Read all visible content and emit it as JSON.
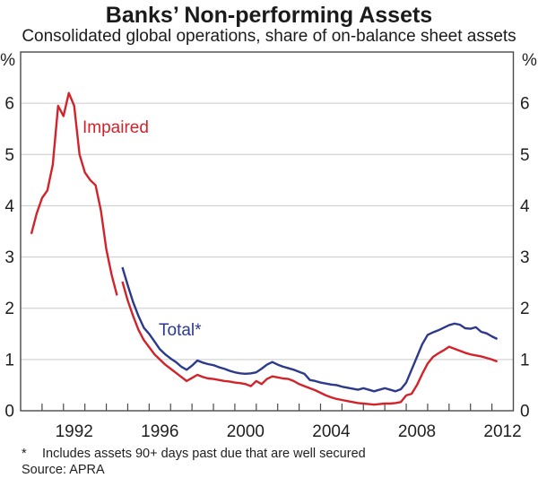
{
  "header": {
    "title": "Banks’ Non-performing Assets",
    "subtitle": "Consolidated global operations, share of on-balance sheet assets"
  },
  "axes": {
    "unit_left": "%",
    "unit_right": "%"
  },
  "annotations": [
    {
      "text": "Impaired",
      "color": "#d2232b"
    },
    {
      "text": "Total*",
      "color": "#2d3a8c"
    }
  ],
  "footer": {
    "footnote_marker": "*",
    "footnote_text": "Includes assets 90+ days past due that are well secured",
    "source": "Source: APRA"
  },
  "chart_data": {
    "type": "line",
    "title": "Banks’ Non-performing Assets",
    "subtitle": "Consolidated global operations, share of on-balance sheet assets",
    "xlabel": "",
    "ylabel": "%",
    "xlim": [
      1990,
      2013
    ],
    "ylim": [
      0,
      7
    ],
    "yticks": [
      0,
      1,
      2,
      3,
      4,
      5,
      6
    ],
    "xticks_labeled": [
      1992,
      1996,
      2000,
      2004,
      2008,
      2012
    ],
    "grid": "horizontal",
    "legend_position": "inline-annotations",
    "style": {
      "axis_color": "#4a4a4a",
      "grid_color": "#c9c9c9",
      "text_color": "#1f1f1f"
    },
    "series": [
      {
        "id": "impaired-pre-break",
        "name": "Impaired (pre-1994 definition, quarterly)",
        "color": "#d2232b",
        "x0": 1990.5,
        "dx": 0.25,
        "y": [
          3.45,
          3.85,
          4.15,
          4.3,
          4.8,
          5.95,
          5.75,
          6.2,
          5.95,
          5.0,
          4.65,
          4.5,
          4.4,
          3.9,
          3.15,
          2.65,
          2.25
        ]
      },
      {
        "id": "impaired",
        "name": "Impaired (quarterly, from Sep 1994)",
        "color": "#d2232b",
        "x0": 1994.75,
        "dx": 0.25,
        "y": [
          2.52,
          2.15,
          1.85,
          1.58,
          1.38,
          1.24,
          1.1,
          1.0,
          0.9,
          0.82,
          0.74,
          0.66,
          0.58,
          0.64,
          0.7,
          0.66,
          0.63,
          0.62,
          0.6,
          0.58,
          0.57,
          0.55,
          0.54,
          0.52,
          0.48,
          0.58,
          0.52,
          0.62,
          0.67,
          0.65,
          0.63,
          0.62,
          0.58,
          0.52,
          0.48,
          0.44,
          0.4,
          0.35,
          0.3,
          0.26,
          0.23,
          0.21,
          0.19,
          0.17,
          0.15,
          0.14,
          0.13,
          0.12,
          0.13,
          0.14,
          0.14,
          0.15,
          0.17,
          0.3,
          0.33,
          0.5,
          0.72,
          0.92,
          1.05,
          1.12,
          1.18,
          1.25,
          1.21,
          1.17,
          1.13,
          1.1,
          1.08,
          1.06,
          1.03,
          1.0,
          0.96
        ]
      },
      {
        "id": "total",
        "name": "Total* (impaired plus 90+ days past due, quarterly, from Sep 1994)",
        "color": "#2d3a8c",
        "x0": 1994.75,
        "dx": 0.25,
        "y": [
          2.8,
          2.45,
          2.12,
          1.85,
          1.62,
          1.5,
          1.35,
          1.2,
          1.1,
          1.02,
          0.95,
          0.86,
          0.8,
          0.88,
          0.98,
          0.94,
          0.91,
          0.89,
          0.85,
          0.82,
          0.78,
          0.75,
          0.73,
          0.72,
          0.73,
          0.75,
          0.82,
          0.9,
          0.95,
          0.9,
          0.86,
          0.83,
          0.8,
          0.76,
          0.72,
          0.6,
          0.58,
          0.55,
          0.53,
          0.51,
          0.5,
          0.47,
          0.45,
          0.43,
          0.41,
          0.44,
          0.41,
          0.38,
          0.41,
          0.44,
          0.41,
          0.38,
          0.42,
          0.55,
          0.8,
          1.05,
          1.3,
          1.48,
          1.53,
          1.57,
          1.62,
          1.67,
          1.7,
          1.68,
          1.61,
          1.6,
          1.63,
          1.54,
          1.51,
          1.45,
          1.4
        ]
      }
    ]
  }
}
